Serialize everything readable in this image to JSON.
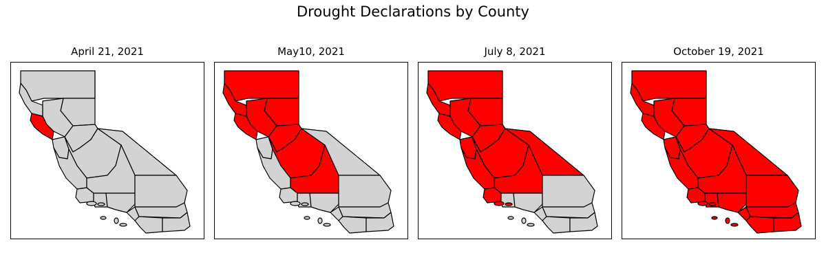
{
  "title": "Drought Declarations by County",
  "colors": {
    "declared": "#ff0000",
    "not_declared": "#d3d3d3",
    "border": "#000000"
  },
  "panels": [
    {
      "date": "April 21, 2021",
      "declared_regions": [
        "north-bay"
      ]
    },
    {
      "date": "May10, 2021",
      "declared_regions": [
        "north-coast",
        "far-north",
        "north-bay",
        "sierra-foothills",
        "sacramento-valley",
        "northeast",
        "san-joaquin-valley",
        "kern"
      ]
    },
    {
      "date": "July 8, 2021",
      "declared_regions": [
        "north-coast",
        "far-north",
        "north-bay",
        "sierra-foothills",
        "sacramento-valley",
        "northeast",
        "san-joaquin-valley",
        "kern",
        "bay-area",
        "central-coast",
        "eastern-sierra",
        "santa-barbara",
        "channel-islands-north"
      ]
    },
    {
      "date": "October 19, 2021",
      "declared_regions": [
        "north-coast",
        "far-north",
        "north-bay",
        "sierra-foothills",
        "sacramento-valley",
        "northeast",
        "san-joaquin-valley",
        "kern",
        "bay-area",
        "central-coast",
        "eastern-sierra",
        "santa-barbara",
        "channel-islands-north",
        "los-angeles",
        "ventura",
        "channel-islands-south",
        "san-bernardino",
        "riverside",
        "orange",
        "san-diego",
        "imperial"
      ]
    }
  ]
}
